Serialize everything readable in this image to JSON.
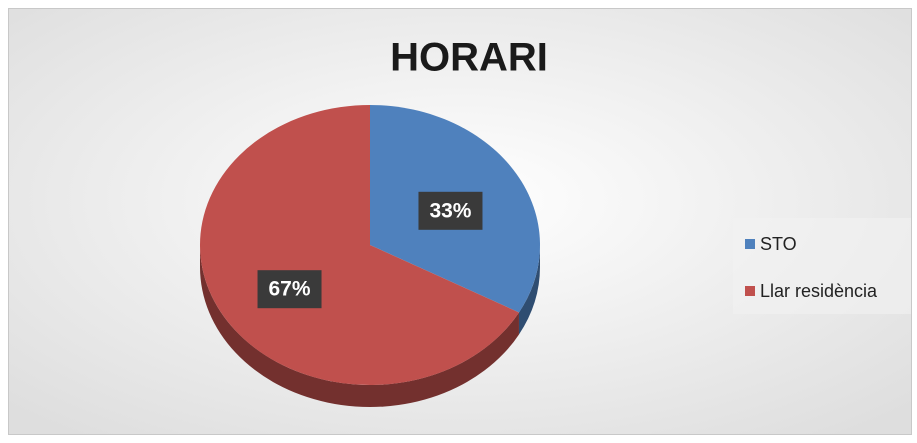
{
  "chart_data": {
    "type": "pie",
    "title": "HORARI",
    "categories": [
      "STO",
      "Llar residència"
    ],
    "values": [
      33,
      67
    ],
    "value_labels": [
      "33%",
      "67%"
    ],
    "colors": [
      "#4f81bd",
      "#c0504d"
    ],
    "legend": "right"
  }
}
